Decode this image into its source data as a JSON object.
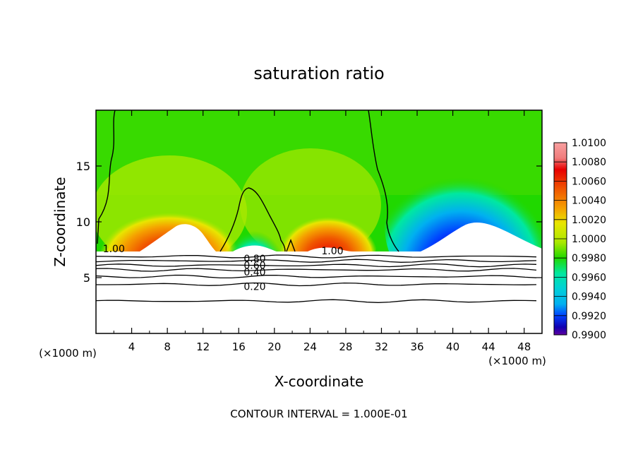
{
  "chart_data": {
    "type": "heatmap",
    "title": "saturation ratio",
    "xlabel": "X-coordinate",
    "ylabel": "Z-coordinate",
    "x_unit": "(×1000 m)",
    "x_unit_right": "(×1000 m)",
    "footer": "CONTOUR INTERVAL = 1.000E-01",
    "xlim": [
      0,
      50
    ],
    "ylim": [
      0,
      20
    ],
    "x_ticks": [
      4,
      8,
      12,
      16,
      20,
      24,
      28,
      32,
      36,
      40,
      44,
      48
    ],
    "y_ticks": [
      5,
      10,
      15
    ],
    "colorbar": {
      "min": 0.99,
      "max": 1.01,
      "tick_labels": [
        "1.0100",
        "1.0080",
        "1.0060",
        "1.0040",
        "1.0020",
        "1.0000",
        "0.9980",
        "0.9960",
        "0.9940",
        "0.9920",
        "0.9900"
      ],
      "tick_values": [
        1.01,
        1.008,
        1.006,
        1.004,
        1.002,
        1.0,
        0.998,
        0.996,
        0.994,
        0.992,
        0.99
      ],
      "colors": [
        "#f07c7c",
        "#e80000",
        "#f05500",
        "#f5a000",
        "#e8e600",
        "#a8e800",
        "#20d800",
        "#00e8a0",
        "#00b0f0",
        "#0040ff",
        "#1000b0"
      ]
    },
    "contour_labels": [
      "1.00",
      "0.80",
      "0.60",
      "0.40",
      "0.20",
      "1.00"
    ],
    "contour_label_values": [
      1.0,
      0.8,
      0.6,
      0.4,
      0.2,
      1.0
    ],
    "contour_label_x": [
      2.0,
      17.8,
      17.8,
      17.8,
      17.8,
      26.5
    ],
    "contour_label_y": [
      7.6,
      6.7,
      6.1,
      5.5,
      4.2,
      7.4
    ],
    "contour_levels_below": [
      6.9,
      6.5,
      6.1,
      5.7,
      5.1,
      4.4,
      2.9
    ]
  },
  "page": {
    "title": "saturation ratio",
    "xlabel": "X-coordinate",
    "ylabel": "Z-coordinate",
    "x_unit_left": "(×1000 m)",
    "x_unit_right": "(×1000 m)",
    "footer": "CONTOUR INTERVAL = 1.000E-01"
  }
}
